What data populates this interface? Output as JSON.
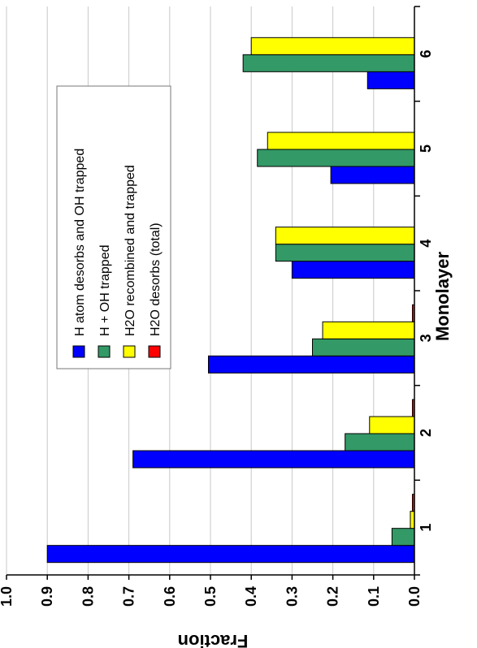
{
  "chart_data": {
    "type": "bar",
    "orientation": "rotated-90-clockwise",
    "xlabel": "Monolayer",
    "ylabel": "Fraction",
    "categories": [
      "1",
      "2",
      "3",
      "4",
      "5",
      "6"
    ],
    "ylim": [
      0,
      1.0
    ],
    "yticks": [
      "0.0",
      "0.1",
      "0.2",
      "0.3",
      "0.4",
      "0.5",
      "0.6",
      "0.7",
      "0.8",
      "0.9",
      "1.0"
    ],
    "grid": true,
    "legend_position": "top-left",
    "series": [
      {
        "name": "H atom desorbs and OH trapped",
        "color": "#0000ff",
        "values": [
          0.9,
          0.69,
          0.505,
          0.3,
          0.205,
          0.115
        ]
      },
      {
        "name": "H + OH trapped",
        "color": "#339966",
        "values": [
          0.055,
          0.17,
          0.25,
          0.34,
          0.385,
          0.42
        ]
      },
      {
        "name": "H2O recombined and trapped",
        "color": "#ffff00",
        "values": [
          0.01,
          0.11,
          0.225,
          0.34,
          0.36,
          0.4
        ]
      },
      {
        "name": "H2O desorbs (total)",
        "color": "#ff0000",
        "values": [
          0.005,
          0.005,
          0.005,
          0.0,
          0.0,
          0.0
        ]
      }
    ]
  }
}
